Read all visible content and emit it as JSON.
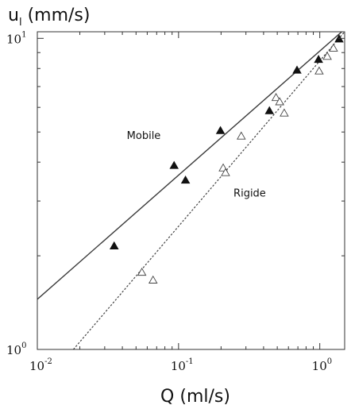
{
  "chart_data": {
    "type": "scatter",
    "xscale": "log",
    "yscale": "log",
    "xlim": [
      0.01,
      1.5
    ],
    "ylim": [
      1,
      10.5
    ],
    "ylabel_main": "u",
    "ylabel_sub": "l",
    "ylabel_units": " (mm/s)",
    "xlabel": "Q (ml/s)",
    "xticks": [
      {
        "value": 0.01,
        "base": "10",
        "exp": "-2"
      },
      {
        "value": 0.1,
        "base": "10",
        "exp": "-1"
      },
      {
        "value": 1,
        "base": "10",
        "exp": "0"
      }
    ],
    "yticks": [
      {
        "value": 1,
        "base": "10",
        "exp": "0"
      },
      {
        "value": 10,
        "base": "10",
        "exp": "1"
      }
    ],
    "annotations": [
      {
        "text": "Mobile",
        "x": 0.043,
        "y": 4.75
      },
      {
        "text": "Rigide",
        "x": 0.245,
        "y": 3.1
      }
    ],
    "grid": false,
    "series": [
      {
        "marker": "filled-triangle",
        "color": "#111111",
        "fit": {
          "style": "solid",
          "x": [
            0.01,
            1.5
          ],
          "y": [
            1.45,
            10.7
          ]
        },
        "points": [
          {
            "x": 0.035,
            "y": 2.15
          },
          {
            "x": 0.093,
            "y": 3.9
          },
          {
            "x": 0.112,
            "y": 3.5
          },
          {
            "x": 0.198,
            "y": 5.05
          },
          {
            "x": 0.44,
            "y": 5.85
          },
          {
            "x": 0.69,
            "y": 7.9
          },
          {
            "x": 0.98,
            "y": 8.55
          },
          {
            "x": 1.37,
            "y": 9.95
          }
        ]
      },
      {
        "marker": "open-triangle",
        "color": "#444444",
        "fit": {
          "style": "dotted",
          "x": [
            0.018,
            1.5
          ],
          "y": [
            1.0,
            10.5
          ]
        },
        "points": [
          {
            "x": 0.055,
            "y": 1.77
          },
          {
            "x": 0.066,
            "y": 1.67
          },
          {
            "x": 0.207,
            "y": 3.83
          },
          {
            "x": 0.215,
            "y": 3.7
          },
          {
            "x": 0.278,
            "y": 4.85
          },
          {
            "x": 0.49,
            "y": 6.45
          },
          {
            "x": 0.52,
            "y": 6.25
          },
          {
            "x": 0.56,
            "y": 5.75
          },
          {
            "x": 0.99,
            "y": 7.85
          },
          {
            "x": 1.13,
            "y": 8.75
          },
          {
            "x": 1.25,
            "y": 9.3
          }
        ]
      }
    ]
  }
}
